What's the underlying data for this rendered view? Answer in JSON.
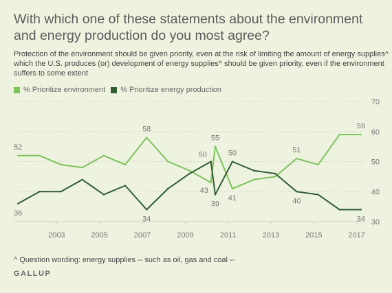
{
  "title": "With which one of these statements about the environment and energy production do you most agree?",
  "subtitle": "Protection of the environment should be given priority, even at the risk of limiting the amount of energy supplies^ which the U.S. produces (or) development of energy supplies^ should be given priority, even if the environment suffers to some extent",
  "footnote": "^ Question wording: energy supplies -- such as oil, gas and coal --",
  "source": "GALLUP",
  "colors": {
    "environment": "#7cc35a",
    "energy": "#2f5d34",
    "grid": "#c9cfbd",
    "tick_text": "#777777",
    "label_text": "#777777"
  },
  "chart_data": {
    "type": "line",
    "title": "",
    "xlabel": "",
    "ylabel": "",
    "ylim": [
      30,
      70
    ],
    "y_ticks": [
      70,
      60,
      50,
      40,
      30
    ],
    "xlim": [
      2001,
      2017.3
    ],
    "x_ticks": [
      2003,
      2005,
      2007,
      2009,
      2011,
      2013,
      2015,
      2017
    ],
    "x_tick_labels": [
      "2003",
      "2005",
      "2007",
      "2009",
      "2011",
      "2013",
      "2015",
      "2017"
    ],
    "grid": true,
    "legend": "top-left",
    "series": [
      {
        "name": "% Prioritize environment",
        "key": "environment",
        "x": [
          2001.2,
          2002.2,
          2003.2,
          2004.2,
          2005.2,
          2006.2,
          2007.2,
          2008.2,
          2009.2,
          2010.2,
          2010.4,
          2011.2,
          2012.2,
          2013.2,
          2014.2,
          2015.2,
          2016.2,
          2017.2
        ],
        "values": [
          52,
          52,
          49,
          48,
          52,
          49,
          58,
          50,
          47,
          43,
          55,
          41,
          44,
          45,
          51,
          49,
          59,
          59
        ]
      },
      {
        "name": "% Prioritize energy production",
        "key": "energy",
        "x": [
          2001.2,
          2002.2,
          2003.2,
          2004.2,
          2005.2,
          2006.2,
          2007.2,
          2008.2,
          2009.2,
          2010.2,
          2010.4,
          2011.2,
          2012.2,
          2013.2,
          2014.2,
          2015.2,
          2016.2,
          2017.2
        ],
        "values": [
          36,
          40,
          40,
          44,
          39,
          42,
          34,
          41,
          46,
          50,
          39,
          50,
          47,
          46,
          40,
          39,
          34,
          34
        ]
      }
    ],
    "data_labels": [
      {
        "series": "environment",
        "index": 0,
        "text": "52",
        "pos": "above"
      },
      {
        "series": "environment",
        "index": 6,
        "text": "58",
        "pos": "above"
      },
      {
        "series": "environment",
        "index": 9,
        "text": "43",
        "pos": "below-left"
      },
      {
        "series": "environment",
        "index": 10,
        "text": "55",
        "pos": "above"
      },
      {
        "series": "environment",
        "index": 11,
        "text": "41",
        "pos": "below"
      },
      {
        "series": "environment",
        "index": 14,
        "text": "51",
        "pos": "above"
      },
      {
        "series": "environment",
        "index": 17,
        "text": "59",
        "pos": "above"
      },
      {
        "series": "energy",
        "index": 0,
        "text": "36",
        "pos": "below"
      },
      {
        "series": "energy",
        "index": 6,
        "text": "34",
        "pos": "below"
      },
      {
        "series": "energy",
        "index": 9,
        "text": "50",
        "pos": "above-left"
      },
      {
        "series": "energy",
        "index": 10,
        "text": "39",
        "pos": "below"
      },
      {
        "series": "energy",
        "index": 11,
        "text": "50",
        "pos": "above"
      },
      {
        "series": "energy",
        "index": 14,
        "text": "40",
        "pos": "below"
      },
      {
        "series": "energy",
        "index": 17,
        "text": "34",
        "pos": "below"
      }
    ]
  }
}
